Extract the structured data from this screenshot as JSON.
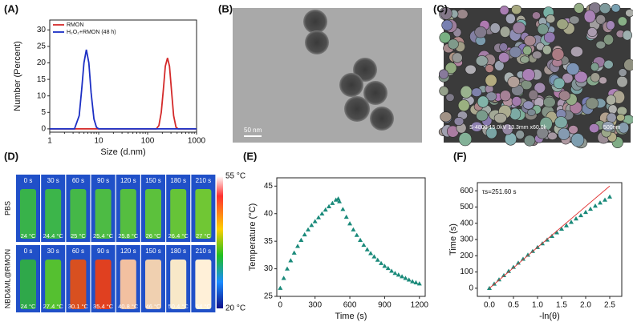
{
  "chart_data": [
    {
      "type": "line",
      "label": "(A)",
      "x_label": "Size (d.nm)",
      "y_label": "Number (Percent)",
      "xlog": true,
      "xlim": [
        1,
        1000
      ],
      "xticks": [
        1,
        10,
        100,
        1000
      ],
      "ylim": [
        -1,
        33
      ],
      "yticks": [
        0,
        5,
        10,
        15,
        20,
        25,
        30
      ],
      "legend": "upper left",
      "series": [
        {
          "name": "RMON",
          "color": "#d42a2a",
          "x": [
            1,
            150,
            170,
            190,
            210,
            230,
            255,
            280,
            310,
            340,
            380,
            420,
            1000
          ],
          "values": [
            0,
            0,
            1,
            5,
            12,
            19,
            21.5,
            19,
            11,
            4,
            0.5,
            0,
            0
          ]
        },
        {
          "name": "H₂O₂+RMON (48 h)",
          "color": "#1c2fc4",
          "x": [
            1,
            3.2,
            4,
            4.5,
            5,
            5.6,
            6.3,
            7,
            8,
            9,
            10,
            1000
          ],
          "values": [
            0,
            0,
            4,
            12,
            20,
            24,
            20,
            11,
            3,
            0.5,
            0,
            0
          ]
        }
      ]
    },
    {
      "type": "scatter",
      "label": "(E)",
      "x_label": "Time (s)",
      "y_label": "Temperature (°C)",
      "xlim": [
        -30,
        1250
      ],
      "xticks": [
        0,
        300,
        600,
        900,
        1200
      ],
      "ylim": [
        25,
        46.5
      ],
      "yticks": [
        25,
        30,
        35,
        40,
        45
      ],
      "series": [
        {
          "color": "#1a8a7a",
          "x": [
            0,
            30,
            60,
            90,
            120,
            150,
            180,
            210,
            240,
            270,
            300,
            330,
            360,
            390,
            420,
            450,
            480,
            500,
            510,
            540,
            570,
            600,
            630,
            660,
            690,
            720,
            750,
            780,
            810,
            840,
            870,
            900,
            930,
            960,
            990,
            1020,
            1050,
            1080,
            1110,
            1140,
            1170,
            1200
          ],
          "values": [
            26.5,
            28.3,
            30.0,
            31.5,
            32.9,
            34.1,
            35.2,
            36.2,
            37.1,
            37.9,
            38.6,
            39.3,
            40.0,
            40.7,
            41.3,
            41.9,
            42.5,
            42.7,
            42.2,
            40.8,
            39.4,
            38.2,
            37.1,
            36.1,
            35.2,
            34.3,
            33.5,
            32.8,
            32.2,
            31.6,
            31.0,
            30.5,
            30.1,
            29.6,
            29.2,
            28.9,
            28.6,
            28.3,
            28.0,
            27.7,
            27.5,
            27.3
          ]
        }
      ]
    },
    {
      "type": "scatter",
      "label": "(F)",
      "x_label": "-ln(θ)",
      "y_label": "Time (s)",
      "annotation": "τs=251.60 s",
      "xlim": [
        -0.25,
        2.75
      ],
      "xticks": [
        {
          "value": 0,
          "label": "0.0"
        },
        0.5,
        {
          "value": 1,
          "label": "1.0"
        },
        1.5,
        {
          "value": 2,
          "label": "2.0"
        },
        2.5
      ],
      "ylim": [
        -50,
        650
      ],
      "yticks": [
        0,
        100,
        200,
        300,
        400,
        500,
        600
      ],
      "series": [
        {
          "color": "#1a8a7a",
          "x": [
            0,
            0.1,
            0.2,
            0.3,
            0.4,
            0.5,
            0.6,
            0.7,
            0.8,
            0.9,
            1.0,
            1.1,
            1.2,
            1.3,
            1.4,
            1.5,
            1.6,
            1.7,
            1.8,
            1.9,
            2.0,
            2.1,
            2.2,
            2.3,
            2.4,
            2.5
          ],
          "values": [
            0,
            27,
            53,
            79,
            105,
            130,
            156,
            180,
            205,
            228,
            252,
            275,
            298,
            321,
            343,
            365,
            386,
            407,
            428,
            448,
            468,
            488,
            507,
            526,
            544,
            563
          ]
        },
        {
          "type": "line",
          "color": "#e03030",
          "x": [
            0,
            2.5
          ],
          "values": [
            0,
            629
          ]
        }
      ]
    }
  ],
  "tem": {
    "label": "(B)",
    "scale_bar": "50 nm"
  },
  "sem": {
    "label": "(C)",
    "info": "S-4800 15.0kV 13.3mm x60.0k",
    "scale_bar": "500nm"
  },
  "thermal": {
    "label": "(D)",
    "colorbar_max": "55 °C",
    "colorbar_min": "20 °C",
    "times": [
      "0 s",
      "30 s",
      "60 s",
      "90 s",
      "120 s",
      "150 s",
      "180 s",
      "210 s"
    ],
    "rows": [
      {
        "name": "PBS",
        "temps": [
          "24 °C",
          "24.4 °C",
          "25 °C",
          "25.4 °C",
          "25.8 °C",
          "26 °C",
          "26.4 °C",
          "27 °C"
        ]
      },
      {
        "name": "NBD&ML@RMON",
        "temps": [
          "24 °C",
          "27.4 °C",
          "30.1 °C",
          "35.4 °C",
          "40.8 °C",
          "46 °C",
          "50.4 °C",
          "54 °C"
        ]
      }
    ]
  }
}
